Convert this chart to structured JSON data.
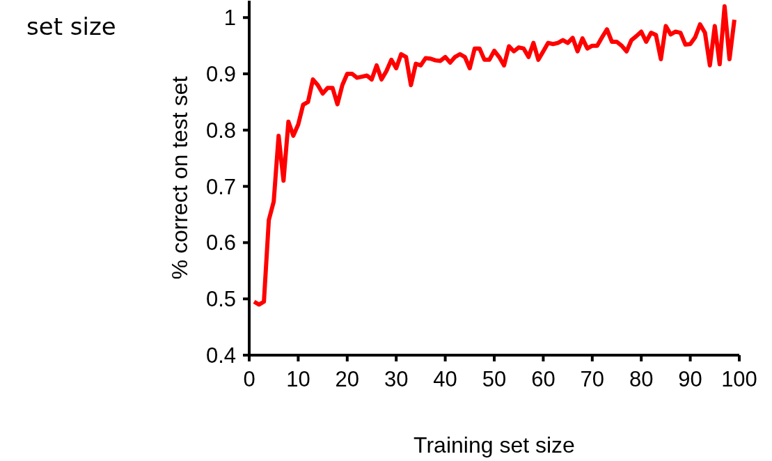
{
  "chart_data": {
    "type": "line",
    "xlabel": "Training set size",
    "ylabel": "% correct on test set",
    "annotations": [
      "set size"
    ],
    "xlim": [
      0,
      100
    ],
    "xticks": [
      0,
      10,
      20,
      30,
      40,
      50,
      60,
      70,
      80,
      90,
      100
    ],
    "ylim": [
      0.4,
      1.03
    ],
    "yticks": [
      0.4,
      0.5,
      0.6,
      0.7,
      0.8,
      0.9,
      1
    ],
    "grid": false,
    "legend": false,
    "marker": "none",
    "line_style": "solid",
    "x": [
      1,
      2,
      3,
      4,
      5,
      6,
      7,
      8,
      9,
      10,
      11,
      12,
      13,
      14,
      15,
      16,
      17,
      18,
      19,
      20,
      21,
      22,
      23,
      24,
      25,
      26,
      27,
      28,
      29,
      30,
      31,
      32,
      33,
      34,
      35,
      36,
      37,
      38,
      39,
      40,
      41,
      42,
      43,
      44,
      45,
      46,
      47,
      48,
      49,
      50,
      51,
      52,
      53,
      54,
      55,
      56,
      57,
      58,
      59,
      60,
      61,
      62,
      63,
      64,
      65,
      66,
      67,
      68,
      69,
      70,
      71,
      72,
      73,
      74,
      75,
      76,
      77,
      78,
      79,
      80,
      81,
      82,
      83,
      84,
      85,
      86,
      87,
      88,
      89,
      90,
      91,
      92,
      93,
      94,
      95,
      96,
      97,
      98,
      99
    ],
    "series": [
      {
        "color": "#ff0000",
        "values": [
          0.495,
          0.49,
          0.495,
          0.64,
          0.673,
          0.79,
          0.71,
          0.815,
          0.79,
          0.81,
          0.845,
          0.85,
          0.89,
          0.88,
          0.865,
          0.875,
          0.875,
          0.846,
          0.88,
          0.9,
          0.9,
          0.893,
          0.895,
          0.897,
          0.89,
          0.915,
          0.89,
          0.905,
          0.925,
          0.91,
          0.935,
          0.93,
          0.88,
          0.918,
          0.915,
          0.928,
          0.927,
          0.924,
          0.923,
          0.93,
          0.92,
          0.93,
          0.935,
          0.93,
          0.91,
          0.945,
          0.945,
          0.925,
          0.925,
          0.941,
          0.93,
          0.915,
          0.949,
          0.94,
          0.947,
          0.945,
          0.93,
          0.955,
          0.925,
          0.94,
          0.955,
          0.953,
          0.955,
          0.96,
          0.955,
          0.964,
          0.94,
          0.963,
          0.945,
          0.95,
          0.95,
          0.965,
          0.979,
          0.957,
          0.957,
          0.95,
          0.94,
          0.96,
          0.967,
          0.975,
          0.957,
          0.973,
          0.969,
          0.926,
          0.985,
          0.97,
          0.975,
          0.973,
          0.952,
          0.953,
          0.965,
          0.988,
          0.973,
          0.915,
          0.985,
          0.917,
          1.02,
          0.926,
          0.996
        ]
      }
    ]
  }
}
